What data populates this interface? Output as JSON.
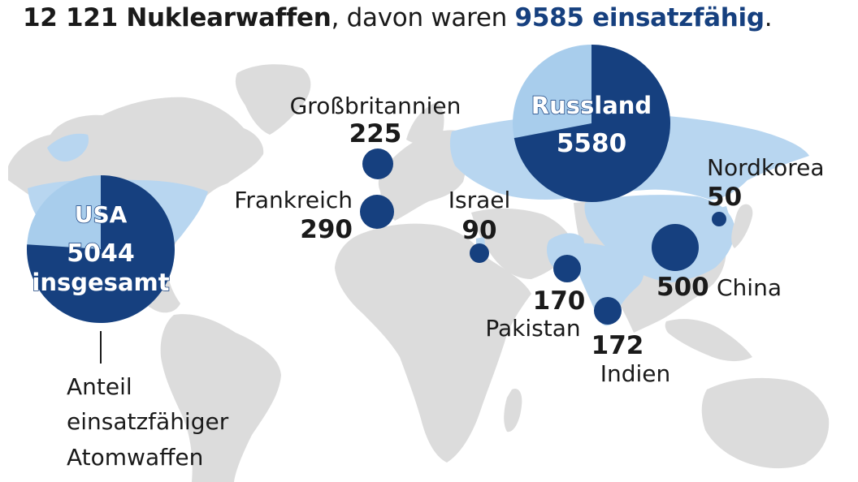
{
  "headline": {
    "total": "12 121 Nuklearwaffen",
    "middle": ", davon waren ",
    "operational": "9585 einsatzfähig",
    "end": "."
  },
  "colors": {
    "land": "#dcdcdc",
    "nuclear_state_land": "#b8d6f0",
    "dark_blue": "#16407f",
    "light_blue": "#a8cdec",
    "text": "#1a1a1a"
  },
  "countries": {
    "usa": {
      "name": "USA",
      "total": "5044",
      "total_note": "insgesamt",
      "share_operational": 0.76
    },
    "russia": {
      "name": "Russland",
      "total": "5580",
      "share_operational": 0.72
    },
    "uk": {
      "name": "Großbritannien",
      "value": "225"
    },
    "france": {
      "name": "Frankreich",
      "value": "290"
    },
    "israel": {
      "name": "Israel",
      "value": "90"
    },
    "pakistan": {
      "name": "Pakistan",
      "value": "170"
    },
    "india": {
      "name": "Indien",
      "value": "172"
    },
    "china": {
      "name": "China",
      "value": "500"
    },
    "north_korea": {
      "name": "Nordkorea",
      "value": "50"
    }
  },
  "legend": {
    "line1": "Anteil",
    "line2": "einsatzfähiger",
    "line3": "Atomwaffen"
  }
}
